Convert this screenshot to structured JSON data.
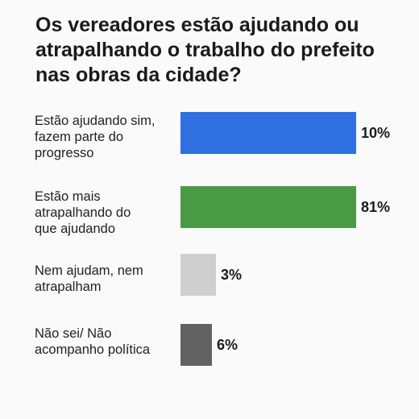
{
  "chart_data": {
    "type": "bar",
    "orientation": "horizontal",
    "title": "Os vereadores estão ajudando ou atrapalhando o trabalho do prefeito nas obras da cidade?",
    "xlabel": "",
    "ylabel": "",
    "xlim": [
      0,
      81
    ],
    "grid": false,
    "legend": "none",
    "categories": [
      "Estão ajudando sim, fazem parte do progresso",
      "Estão mais atrapalhando do que ajudando",
      "Nem ajudam, nem atrapalham",
      "Não sei/ Não acompanho política"
    ],
    "category_lines": [
      [
        "Estão ajudando sim,",
        "fazem parte do",
        "progresso"
      ],
      [
        "Estão mais",
        "atrapalhando do",
        "que ajudando"
      ],
      [
        "Nem ajudam, nem",
        "atrapalham"
      ],
      [
        "Não sei/ Não",
        "acompanho política"
      ]
    ],
    "values": [
      10,
      81,
      3,
      6
    ],
    "value_labels": [
      "10%",
      "81%",
      "3%",
      "6%"
    ],
    "colors": [
      "#2f6fe0",
      "#4a9a45",
      "#cfcfcf",
      "#626262"
    ]
  }
}
